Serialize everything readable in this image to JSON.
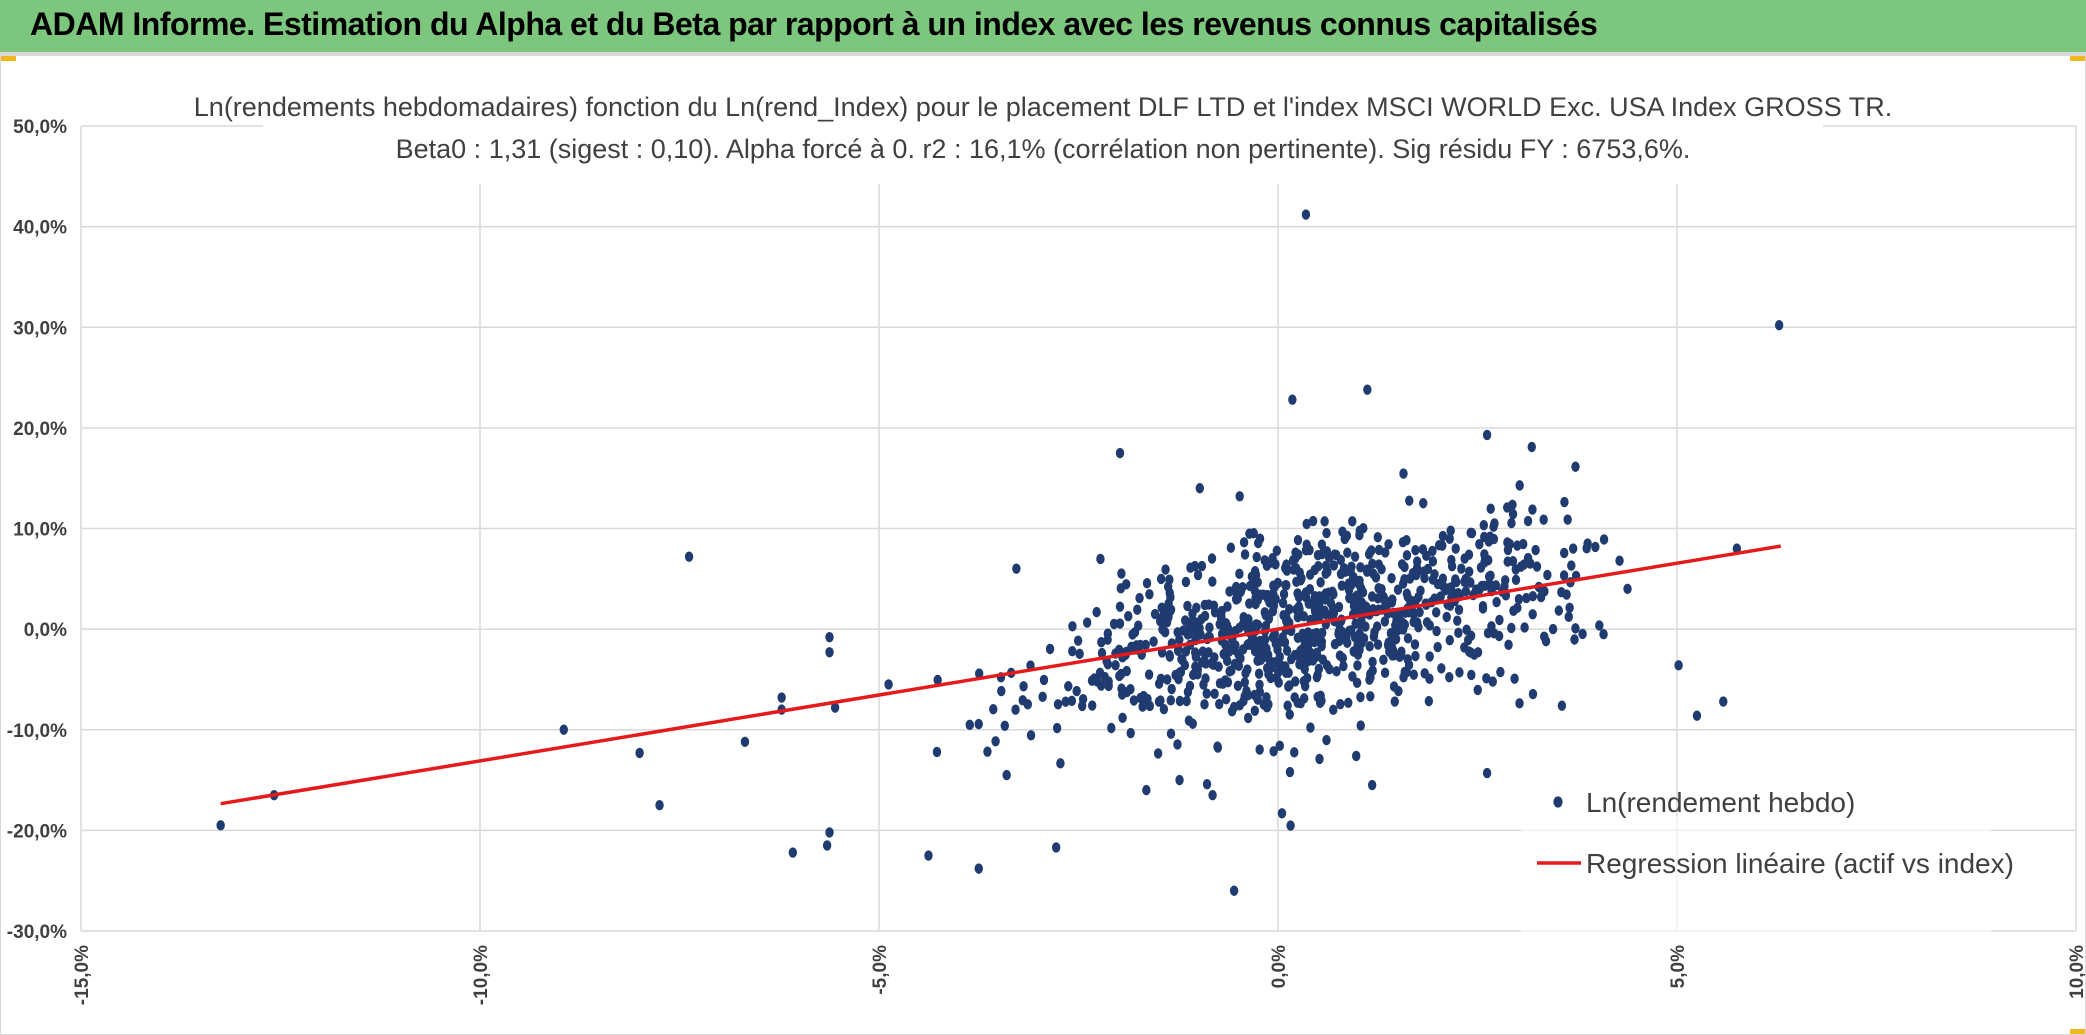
{
  "header": {
    "title": "ADAM Informe. Estimation du Alpha et du Beta par rapport à un index avec les revenus connus capitalisés"
  },
  "colors": {
    "header_bg": "#7dc67e",
    "points": "#1f3b70",
    "regression": "#e41a1c",
    "grid": "#d9d9d9",
    "text": "#404040"
  },
  "chart_data": {
    "type": "scatter",
    "title_lines": [
      "Ln(rendements hebdomadaires) fonction du Ln(rend_Index) pour le placement DLF LTD et l'index MSCI WORLD Exc. USA Index GROSS TR.",
      "Beta0 : 1,31 (sigest : 0,10). Alpha forcé à 0. r2 : 16,1% (corrélation non pertinente). Sig résidu FY : 6753,6%."
    ],
    "xlim": [
      -0.15,
      0.1
    ],
    "ylim": [
      -0.3,
      0.5
    ],
    "x_ticks": [
      -0.15,
      -0.1,
      -0.05,
      0.0,
      0.05,
      0.1
    ],
    "x_tick_labels": [
      "-15,0%",
      "-10,0%",
      "-5,0%",
      "0,0%",
      "5,0%",
      "10,0%"
    ],
    "y_ticks": [
      -0.3,
      -0.2,
      -0.1,
      0.0,
      0.1,
      0.2,
      0.3,
      0.4,
      0.5
    ],
    "y_tick_labels": [
      "-30,0%",
      "-20,0%",
      "-10,0%",
      "0,0%",
      "10,0%",
      "20,0%",
      "30,0%",
      "40,0%",
      "50,0%"
    ],
    "grid": true,
    "legend_position": "bottom-right",
    "series": [
      {
        "name": "Ln(rendement hebdo)",
        "kind": "scatter",
        "color": "#1f3b70",
        "outliers": [
          [
            -0.1325,
            -0.195
          ],
          [
            -0.1258,
            -0.165
          ],
          [
            -0.0895,
            -0.1
          ],
          [
            -0.08,
            -0.123
          ],
          [
            -0.0775,
            -0.175
          ],
          [
            -0.0738,
            0.072
          ],
          [
            -0.0668,
            -0.112
          ],
          [
            -0.0622,
            -0.068
          ],
          [
            -0.0622,
            -0.08
          ],
          [
            -0.0608,
            -0.222
          ],
          [
            -0.0565,
            -0.215
          ],
          [
            -0.0562,
            -0.202
          ],
          [
            -0.0562,
            -0.008
          ],
          [
            -0.0562,
            -0.023
          ],
          [
            -0.0555,
            -0.078
          ],
          [
            -0.0488,
            -0.055
          ],
          [
            -0.0438,
            -0.225
          ],
          [
            -0.0375,
            -0.238
          ],
          [
            -0.0278,
            -0.217
          ],
          [
            -0.0198,
            0.175
          ],
          [
            -0.0055,
            -0.26
          ],
          [
            0.0035,
            0.412
          ],
          [
            0.0005,
            -0.183
          ],
          [
            0.0018,
            0.228
          ],
          [
            0.0112,
            0.238
          ],
          [
            0.0262,
            0.193
          ],
          [
            0.0318,
            0.181
          ],
          [
            0.0628,
            0.302
          ],
          [
            0.0502,
            -0.036
          ],
          [
            0.0525,
            -0.086
          ],
          [
            0.0558,
            -0.072
          ],
          [
            0.0575,
            0.08
          ],
          [
            0.0408,
            -0.005
          ],
          [
            0.0428,
            0.068
          ],
          [
            0.0438,
            0.04
          ],
          [
            0.0388,
            0.085
          ],
          [
            -0.0098,
            0.14
          ],
          [
            -0.0048,
            0.132
          ],
          [
            0.0118,
            -0.155
          ],
          [
            -0.0165,
            -0.16
          ],
          [
            0.0262,
            -0.143
          ],
          [
            0.0015,
            -0.142
          ],
          [
            0.0052,
            -0.129
          ],
          [
            0.0098,
            -0.126
          ],
          [
            -0.0082,
            -0.165
          ],
          [
            -0.034,
            -0.145
          ]
        ],
        "cloud": {
          "count": 900,
          "x_mean": 0.004,
          "x_sd": 0.0165,
          "x_min": -0.045,
          "x_max": 0.042,
          "beta": 1.31,
          "y_sd": 0.052,
          "y_min": -0.24,
          "y_max": 0.19
        }
      },
      {
        "name": "Regression linéaire (actif vs index)",
        "kind": "line",
        "color": "#e41a1c",
        "x": [
          -0.1325,
          0.063
        ],
        "y": [
          -0.1735,
          0.0825
        ]
      }
    ]
  }
}
